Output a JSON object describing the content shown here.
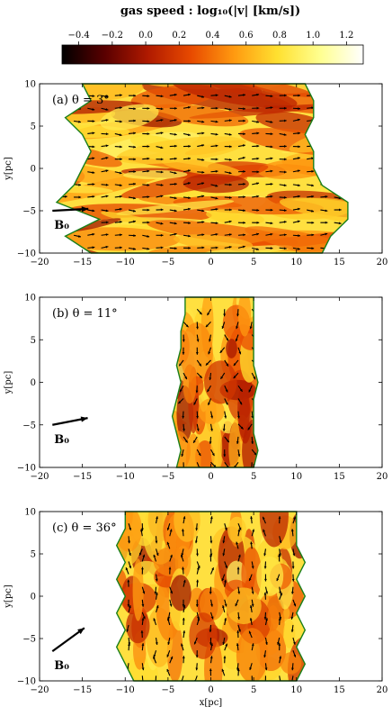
{
  "colorbar": {
    "label": "gas speed : log₁₀(|v| [km/s])",
    "ticks": [
      -0.4,
      -0.2,
      0.0,
      0.2,
      0.4,
      0.6,
      0.8,
      1.0,
      1.2
    ],
    "tick_labels": [
      "−0.4",
      "−0.2",
      "0.0",
      "0.2",
      "0.4",
      "0.6",
      "0.8",
      "1.0",
      "1.2"
    ],
    "range": [
      -0.5,
      1.3
    ],
    "colormap": [
      "#000000",
      "#5a0000",
      "#b01a00",
      "#e84a00",
      "#ff9a10",
      "#ffe030",
      "#ffff90",
      "#ffffff"
    ]
  },
  "chart_data": [
    {
      "type": "heatmap",
      "panel_label": "(a) θ = 3°",
      "theta_deg": 3,
      "xlabel": "",
      "ylabel": "y[pc]",
      "xlim": [
        -20,
        20
      ],
      "ylim": [
        -10,
        10
      ],
      "xticks": [
        -20,
        -15,
        -10,
        -5,
        0,
        5,
        10,
        15,
        20
      ],
      "yticks": [
        -10,
        -5,
        0,
        5,
        10
      ],
      "field_label": "B₀",
      "field_angle_deg": 3,
      "filament": {
        "left_x": [
          -14,
          -17,
          -13,
          -18,
          -16,
          -15,
          -14,
          -15,
          -17,
          -14,
          -15
        ],
        "right_x": [
          13,
          14,
          16,
          16,
          13,
          12,
          12,
          11,
          12,
          12,
          11
        ],
        "y": [
          -10,
          -8,
          -6,
          -4,
          -2,
          0,
          2,
          4,
          6,
          8,
          10
        ]
      }
    },
    {
      "type": "heatmap",
      "panel_label": "(b) θ = 11°",
      "theta_deg": 11,
      "xlabel": "",
      "ylabel": "y[pc]",
      "xlim": [
        -20,
        20
      ],
      "ylim": [
        -10,
        10
      ],
      "xticks": [
        -20,
        -15,
        -10,
        -5,
        0,
        5,
        10,
        15,
        20
      ],
      "yticks": [
        -10,
        -5,
        0,
        5,
        10
      ],
      "field_label": "B₀",
      "field_angle_deg": 11,
      "filament": {
        "left_x": [
          -4,
          -3.5,
          -4,
          -4.5,
          -4,
          -3.5,
          -4,
          -3.5,
          -3.5,
          -3,
          -3
        ],
        "right_x": [
          5,
          5.5,
          5,
          5,
          5,
          5.5,
          5,
          5,
          5,
          5,
          5
        ],
        "y": [
          -10,
          -8,
          -6,
          -4,
          -2,
          0,
          2,
          4,
          6,
          8,
          10
        ]
      }
    },
    {
      "type": "heatmap",
      "panel_label": "(c) θ = 36°",
      "theta_deg": 36,
      "xlabel": "x[pc]",
      "ylabel": "y[pc]",
      "xlim": [
        -20,
        20
      ],
      "ylim": [
        -10,
        10
      ],
      "xticks": [
        -20,
        -15,
        -10,
        -5,
        0,
        5,
        10,
        15,
        20
      ],
      "yticks": [
        -10,
        -5,
        0,
        5,
        10
      ],
      "field_label": "B₀",
      "field_angle_deg": 36,
      "filament": {
        "left_x": [
          -9,
          -10,
          -11,
          -10,
          -11,
          -10,
          -11,
          -10,
          -11,
          -10,
          -10
        ],
        "right_x": [
          10,
          11,
          10,
          11,
          10,
          11,
          10,
          11,
          10,
          10,
          10
        ],
        "y": [
          -10,
          -8,
          -6,
          -4,
          -2,
          0,
          2,
          4,
          6,
          8,
          10
        ]
      }
    }
  ]
}
